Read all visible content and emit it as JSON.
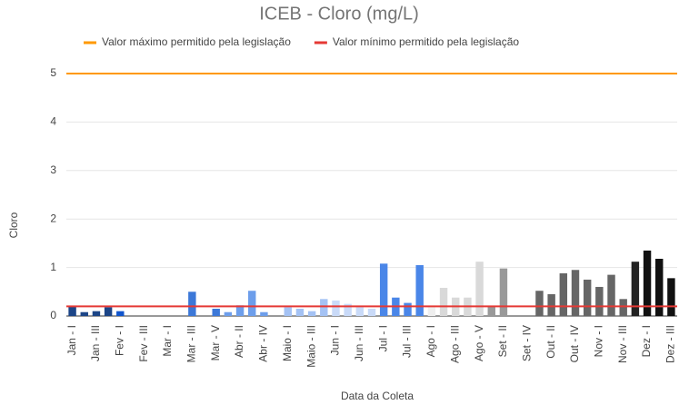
{
  "chart_data": {
    "type": "bar",
    "title": "ICEB - Cloro (mg/L)",
    "x_label": "Data da Coleta",
    "y_label": "Cloro",
    "categories": [
      "Jan - I",
      null,
      "Jan - III",
      null,
      "Fev - I",
      null,
      "Fev - III",
      null,
      "Mar - I",
      null,
      "Mar - III",
      null,
      "Mar - V",
      null,
      "Abr - II",
      null,
      "Abr - IV",
      null,
      "Maio - I",
      null,
      "Maio - III",
      null,
      "Jun - I",
      null,
      "Jun - III",
      null,
      "Jul - I",
      null,
      "Jul - III",
      null,
      "Ago - I",
      null,
      "Ago - III",
      null,
      "Ago - V",
      null,
      "Set - II",
      null,
      "Set - IV",
      null,
      "Out - II",
      null,
      "Out - IV",
      null,
      "Nov - I",
      null,
      "Nov - III",
      null,
      "Dez - I",
      null,
      "Dez - III"
    ],
    "values": [
      0.2,
      0.08,
      0.1,
      0.18,
      0.1,
      null,
      null,
      null,
      null,
      null,
      0.5,
      null,
      0.15,
      0.08,
      0.22,
      0.52,
      0.08,
      null,
      0.18,
      0.15,
      0.1,
      0.35,
      0.32,
      0.25,
      0.18,
      0.15,
      1.08,
      0.38,
      0.27,
      1.05,
      0.18,
      0.58,
      0.38,
      0.38,
      1.12,
      0.2,
      0.98,
      null,
      null,
      0.52,
      0.45,
      0.88,
      0.95,
      0.75,
      0.6,
      0.85,
      0.35,
      1.12,
      1.35,
      1.18,
      0.78
    ],
    "colors": [
      "#1c4587",
      "#1c4587",
      "#1c4587",
      "#1c4587",
      "#1155cc",
      null,
      null,
      null,
      null,
      null,
      "#3c78d8",
      null,
      "#3c78d8",
      "#6d9eeb",
      "#6d9eeb",
      "#6d9eeb",
      "#6d9eeb",
      null,
      "#a4c2f4",
      "#a4c2f4",
      "#a4c2f4",
      "#a4c2f4",
      "#c9daf8",
      "#c9daf8",
      "#c9daf8",
      "#c9daf8",
      "#4a86e8",
      "#4a86e8",
      "#4a86e8",
      "#4a86e8",
      "#efefef",
      "#d9d9d9",
      "#d9d9d9",
      "#d9d9d9",
      "#d9d9d9",
      "#999999",
      "#999999",
      null,
      null,
      "#666666",
      "#666666",
      "#666666",
      "#666666",
      "#666666",
      "#666666",
      "#666666",
      "#666666",
      "#222222",
      "#111111",
      "#111111",
      "#111111"
    ],
    "reference_lines": [
      {
        "name": "Valor máximo permitido pela legislação",
        "color": "#ff9900",
        "value": 5
      },
      {
        "name": "Valor mínimo permitido pela legislação",
        "color": "#e53935",
        "value": 0.2
      }
    ],
    "ylim": [
      0,
      5
    ],
    "yticks": [
      0,
      1,
      2,
      3,
      4,
      5
    ],
    "grid": true
  }
}
